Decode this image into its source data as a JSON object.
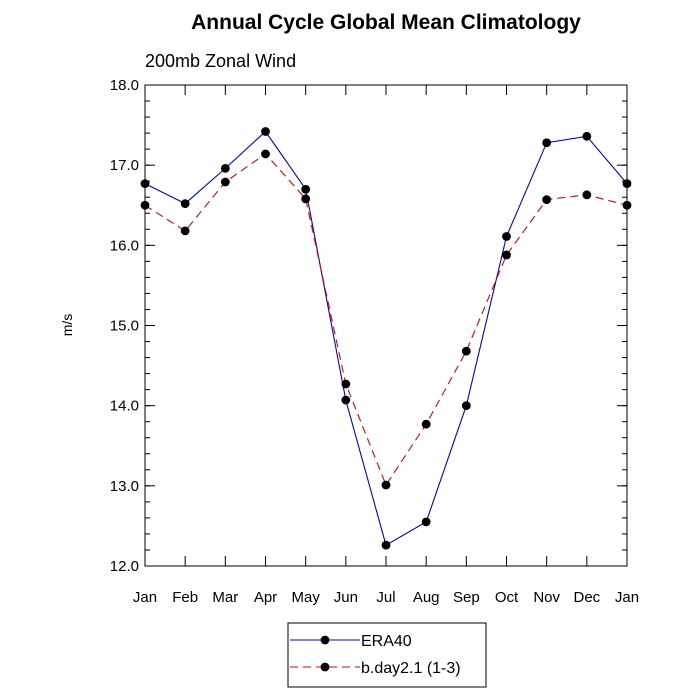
{
  "chart_data": {
    "type": "line",
    "title": "Annual Cycle Global Mean Climatology",
    "subtitle": "200mb Zonal Wind",
    "xlabel": "",
    "ylabel": "m/s",
    "categories": [
      "Jan",
      "Feb",
      "Mar",
      "Apr",
      "May",
      "Jun",
      "Jul",
      "Aug",
      "Sep",
      "Oct",
      "Nov",
      "Dec",
      "Jan"
    ],
    "ylim": [
      12.0,
      18.0
    ],
    "yticks": [
      "12.0",
      "13.0",
      "14.0",
      "15.0",
      "16.0",
      "17.0",
      "18.0"
    ],
    "grid": false,
    "legend_position": "bottom-center",
    "series": [
      {
        "name": "ERA40",
        "color": "#0000cc",
        "dash": "solid",
        "values": [
          16.77,
          16.52,
          16.96,
          17.42,
          16.7,
          14.07,
          12.26,
          12.55,
          14.0,
          16.11,
          17.28,
          17.36,
          16.77
        ]
      },
      {
        "name": "b.day2.1 (1-3)",
        "color": "#e00000",
        "dash": "dashed",
        "values": [
          16.5,
          16.18,
          16.79,
          17.14,
          16.58,
          14.27,
          13.01,
          13.77,
          14.68,
          15.88,
          16.57,
          16.63,
          16.5
        ]
      }
    ]
  }
}
